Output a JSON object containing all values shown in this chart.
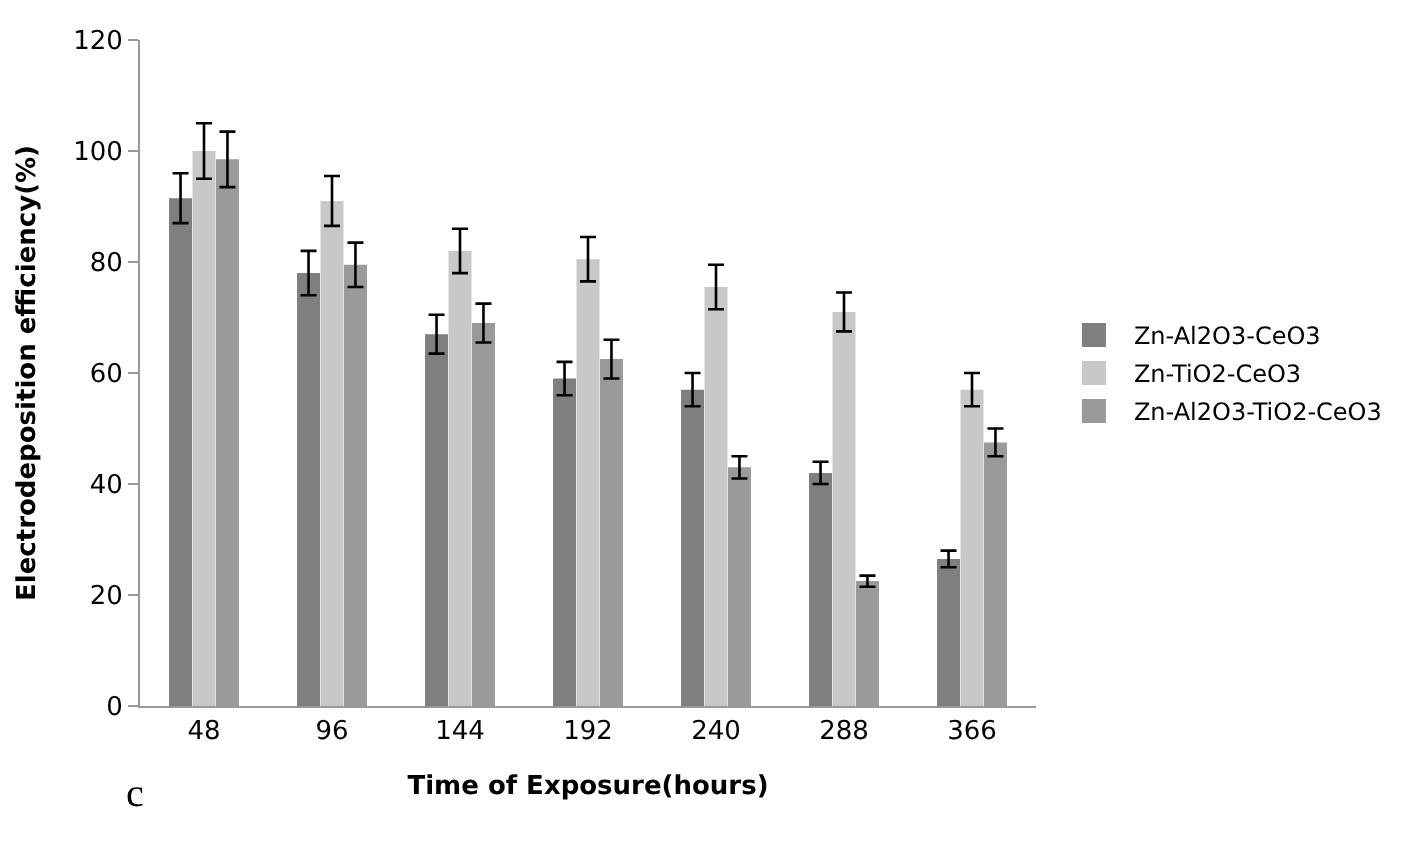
{
  "chart_data": {
    "type": "bar",
    "xlabel": "Time of Exposure(hours)",
    "ylabel": "Electrodeposition efficiency(%)",
    "categories": [
      "48",
      "96",
      "144",
      "192",
      "240",
      "288",
      "366"
    ],
    "series": [
      {
        "name": "Zn-Al2O3-CeO3",
        "color": "#7f7f7f",
        "values": [
          91.5,
          78,
          67,
          59,
          57,
          42,
          26.5
        ],
        "errors": [
          4.5,
          4,
          3.5,
          3,
          3,
          2,
          1.5
        ]
      },
      {
        "name": "Zn-TiO2-CeO3",
        "color": "#c8c8c8",
        "values": [
          100,
          91,
          82,
          80.5,
          75.5,
          71,
          57
        ],
        "errors": [
          5,
          4.5,
          4,
          4,
          4,
          3.5,
          3
        ]
      },
      {
        "name": "Zn-Al2O3-TiO2-CeO3",
        "color": "#9a9a9a",
        "values": [
          98.5,
          79.5,
          69,
          62.5,
          43,
          22.5,
          47.5
        ],
        "errors": [
          5,
          4,
          3.5,
          3.5,
          2,
          1,
          2.5
        ]
      }
    ],
    "ylim": [
      0,
      120
    ],
    "yticks": [
      0,
      20,
      40,
      60,
      80,
      100,
      120
    ],
    "grid": false,
    "legend": "right",
    "annotations": [
      "c"
    ]
  }
}
